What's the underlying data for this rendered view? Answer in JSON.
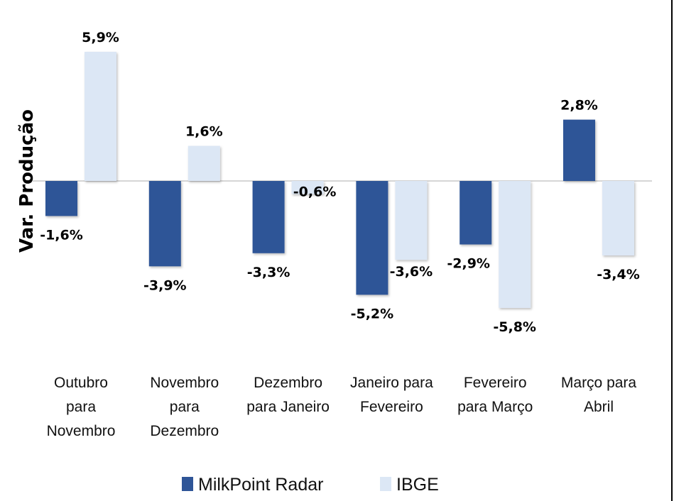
{
  "chart_data": {
    "type": "bar",
    "title": "",
    "xlabel": "",
    "ylabel": "Var. Produção",
    "ylim": [
      -6,
      6
    ],
    "grid": false,
    "legend_position": "bottom",
    "categories": [
      [
        "Outubro",
        "para",
        "Novembro"
      ],
      [
        "Novembro",
        "para",
        "Dezembro"
      ],
      [
        "Dezembro",
        "para Janeiro"
      ],
      [
        "Janeiro para",
        "Fevereiro"
      ],
      [
        "Fevereiro",
        "para Março"
      ],
      [
        "Março para",
        "Abril"
      ]
    ],
    "series": [
      {
        "name": "MilkPoint Radar",
        "color": "#2f5597",
        "values": [
          -1.6,
          -3.9,
          -3.3,
          -5.2,
          -2.9,
          2.8
        ],
        "labels": [
          "-1,6%",
          "-3,9%",
          "-3,3%",
          "-5,2%",
          "-2,9%",
          "2,8%"
        ]
      },
      {
        "name": "IBGE",
        "color": "#dce7f5",
        "values": [
          5.9,
          1.6,
          -0.6,
          -3.6,
          -5.8,
          -3.4
        ],
        "labels": [
          "5,9%",
          "1,6%",
          "-0,6%",
          "-3,6%",
          "-5,8%",
          "-3,4%"
        ]
      }
    ]
  }
}
